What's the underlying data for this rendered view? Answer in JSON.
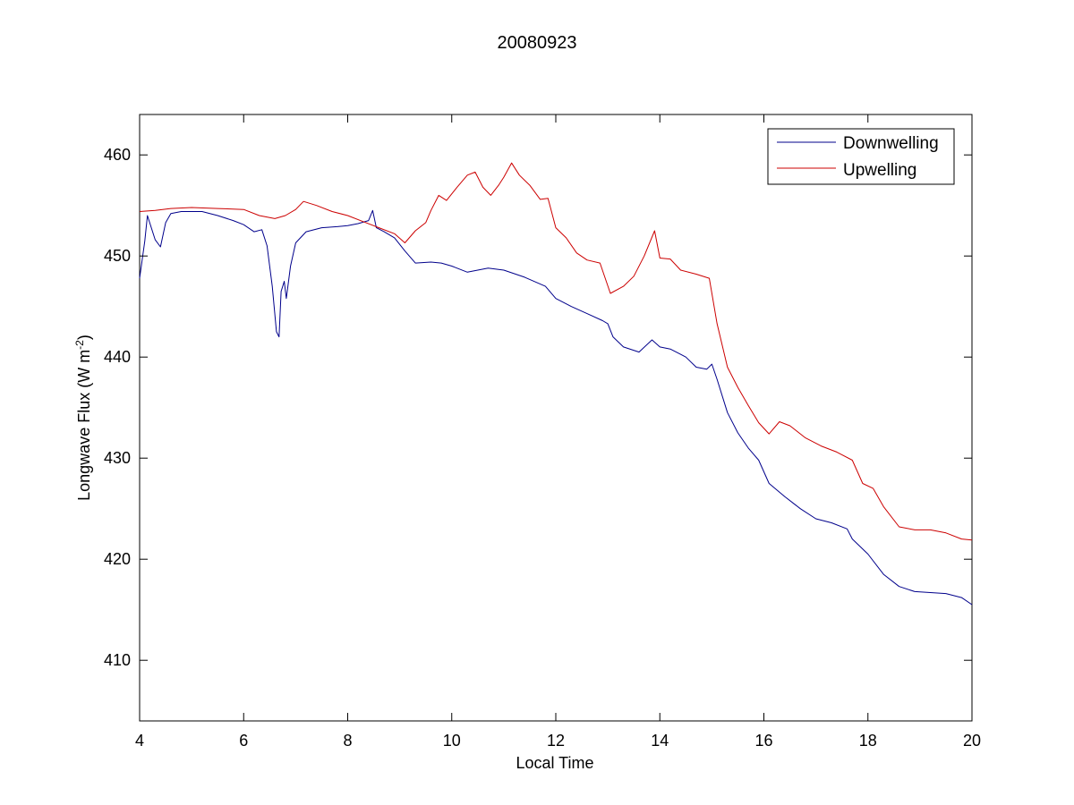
{
  "chart_data": {
    "type": "line",
    "title": "20080923",
    "xlabel": "Local Time",
    "ylabel": "Longwave Flux (W m",
    "ylabel_exp": "-2",
    "ylabel_close": ")",
    "xlim": [
      4,
      20
    ],
    "ylim": [
      404,
      464
    ],
    "xticks": [
      4,
      6,
      8,
      10,
      12,
      14,
      16,
      18,
      20
    ],
    "yticks": [
      410,
      420,
      430,
      440,
      450,
      460
    ],
    "grid": false,
    "legend": "top-right",
    "series": [
      {
        "name": "Downwelling",
        "color": "#00008b",
        "points": [
          [
            4.0,
            447.8
          ],
          [
            4.1,
            451.5
          ],
          [
            4.15,
            454.0
          ],
          [
            4.2,
            453.2
          ],
          [
            4.3,
            451.6
          ],
          [
            4.4,
            450.9
          ],
          [
            4.5,
            453.3
          ],
          [
            4.6,
            454.2
          ],
          [
            4.8,
            454.4
          ],
          [
            5.0,
            454.4
          ],
          [
            5.2,
            454.4
          ],
          [
            5.5,
            454.0
          ],
          [
            5.8,
            453.5
          ],
          [
            6.0,
            453.1
          ],
          [
            6.2,
            452.4
          ],
          [
            6.35,
            452.6
          ],
          [
            6.45,
            451.0
          ],
          [
            6.55,
            447.0
          ],
          [
            6.63,
            442.5
          ],
          [
            6.68,
            442.0
          ],
          [
            6.72,
            446.5
          ],
          [
            6.78,
            447.5
          ],
          [
            6.82,
            445.8
          ],
          [
            6.9,
            449.0
          ],
          [
            7.0,
            451.3
          ],
          [
            7.2,
            452.4
          ],
          [
            7.5,
            452.8
          ],
          [
            7.8,
            452.9
          ],
          [
            8.0,
            453.0
          ],
          [
            8.2,
            453.2
          ],
          [
            8.4,
            453.5
          ],
          [
            8.48,
            454.5
          ],
          [
            8.55,
            452.8
          ],
          [
            8.7,
            452.4
          ],
          [
            8.9,
            451.8
          ],
          [
            9.1,
            450.5
          ],
          [
            9.3,
            449.3
          ],
          [
            9.6,
            449.4
          ],
          [
            9.8,
            449.3
          ],
          [
            10.0,
            449.0
          ],
          [
            10.3,
            448.4
          ],
          [
            10.7,
            448.8
          ],
          [
            11.0,
            448.6
          ],
          [
            11.4,
            447.9
          ],
          [
            11.8,
            447.0
          ],
          [
            12.0,
            445.8
          ],
          [
            12.3,
            445.0
          ],
          [
            12.6,
            444.3
          ],
          [
            12.9,
            443.6
          ],
          [
            13.0,
            443.3
          ],
          [
            13.1,
            442.0
          ],
          [
            13.3,
            441.0
          ],
          [
            13.6,
            440.5
          ],
          [
            13.85,
            441.7
          ],
          [
            14.0,
            441.0
          ],
          [
            14.2,
            440.8
          ],
          [
            14.5,
            440.0
          ],
          [
            14.7,
            439.0
          ],
          [
            14.9,
            438.8
          ],
          [
            15.0,
            439.3
          ],
          [
            15.1,
            437.8
          ],
          [
            15.3,
            434.5
          ],
          [
            15.5,
            432.5
          ],
          [
            15.7,
            431.0
          ],
          [
            15.9,
            429.8
          ],
          [
            16.1,
            427.5
          ],
          [
            16.4,
            426.2
          ],
          [
            16.7,
            425.0
          ],
          [
            17.0,
            424.0
          ],
          [
            17.3,
            423.6
          ],
          [
            17.6,
            423.0
          ],
          [
            17.7,
            422.0
          ],
          [
            18.0,
            420.5
          ],
          [
            18.3,
            418.5
          ],
          [
            18.6,
            417.3
          ],
          [
            18.9,
            416.8
          ],
          [
            19.2,
            416.7
          ],
          [
            19.5,
            416.6
          ],
          [
            19.8,
            416.2
          ],
          [
            20.0,
            415.5
          ]
        ]
      },
      {
        "name": "Upwelling",
        "color": "#cc0000",
        "points": [
          [
            4.0,
            454.4
          ],
          [
            4.3,
            454.5
          ],
          [
            4.6,
            454.7
          ],
          [
            5.0,
            454.8
          ],
          [
            5.5,
            454.7
          ],
          [
            6.0,
            454.6
          ],
          [
            6.3,
            454.0
          ],
          [
            6.6,
            453.7
          ],
          [
            6.8,
            454.0
          ],
          [
            7.0,
            454.6
          ],
          [
            7.15,
            455.4
          ],
          [
            7.4,
            455.0
          ],
          [
            7.7,
            454.4
          ],
          [
            8.0,
            454.0
          ],
          [
            8.3,
            453.4
          ],
          [
            8.6,
            452.8
          ],
          [
            8.9,
            452.2
          ],
          [
            9.1,
            451.3
          ],
          [
            9.3,
            452.5
          ],
          [
            9.5,
            453.3
          ],
          [
            9.6,
            454.5
          ],
          [
            9.75,
            456.0
          ],
          [
            9.9,
            455.5
          ],
          [
            10.1,
            456.8
          ],
          [
            10.3,
            458.0
          ],
          [
            10.45,
            458.3
          ],
          [
            10.6,
            456.8
          ],
          [
            10.75,
            456.0
          ],
          [
            10.9,
            457.0
          ],
          [
            11.0,
            457.8
          ],
          [
            11.15,
            459.2
          ],
          [
            11.3,
            458.0
          ],
          [
            11.5,
            457.0
          ],
          [
            11.7,
            455.6
          ],
          [
            11.85,
            455.7
          ],
          [
            12.0,
            452.8
          ],
          [
            12.2,
            451.8
          ],
          [
            12.4,
            450.3
          ],
          [
            12.6,
            449.6
          ],
          [
            12.85,
            449.3
          ],
          [
            13.05,
            446.3
          ],
          [
            13.3,
            447.0
          ],
          [
            13.5,
            448.0
          ],
          [
            13.7,
            450.0
          ],
          [
            13.9,
            452.5
          ],
          [
            14.0,
            449.8
          ],
          [
            14.2,
            449.7
          ],
          [
            14.4,
            448.6
          ],
          [
            14.7,
            448.2
          ],
          [
            14.95,
            447.8
          ],
          [
            15.1,
            443.3
          ],
          [
            15.3,
            439.0
          ],
          [
            15.5,
            437.0
          ],
          [
            15.7,
            435.2
          ],
          [
            15.9,
            433.5
          ],
          [
            16.1,
            432.4
          ],
          [
            16.3,
            433.6
          ],
          [
            16.5,
            433.2
          ],
          [
            16.8,
            432.0
          ],
          [
            17.1,
            431.2
          ],
          [
            17.4,
            430.6
          ],
          [
            17.7,
            429.8
          ],
          [
            17.9,
            427.5
          ],
          [
            18.1,
            427.0
          ],
          [
            18.3,
            425.2
          ],
          [
            18.6,
            423.2
          ],
          [
            18.9,
            422.9
          ],
          [
            19.2,
            422.9
          ],
          [
            19.5,
            422.6
          ],
          [
            19.8,
            422.0
          ],
          [
            20.0,
            421.9
          ]
        ]
      }
    ]
  }
}
